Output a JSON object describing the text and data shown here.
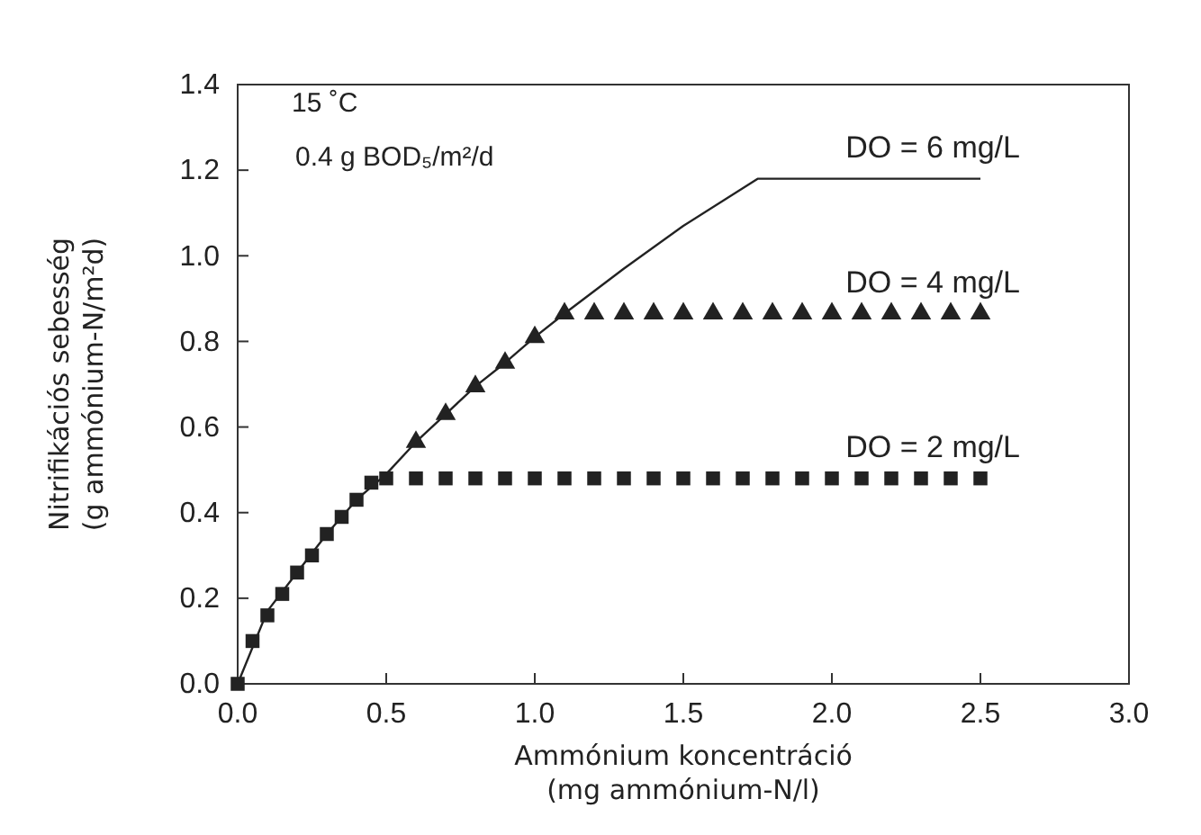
{
  "chart_data": {
    "type": "line",
    "xlabel": "Ammónium koncentráció\n(mg ammónium-N/l)",
    "ylabel": "Nitrifikációs sebesség\n(g ammónium-N/m²d)",
    "xlim": [
      0,
      3
    ],
    "xticks": [
      {
        "value": 0,
        "label": "0.0"
      },
      {
        "value": 0.5,
        "label": "0.5"
      },
      {
        "value": 1,
        "label": "1.0"
      },
      {
        "value": 1.5,
        "label": "1.5"
      },
      {
        "value": 2,
        "label": "2.0"
      },
      {
        "value": 2.5,
        "label": "2.5"
      },
      {
        "value": 3,
        "label": "3.0"
      }
    ],
    "ylim": [
      0,
      1.4
    ],
    "yticks": [
      {
        "value": 0,
        "label": "0.0"
      },
      {
        "value": 0.2,
        "label": "0.2"
      },
      {
        "value": 0.4,
        "label": "0.4"
      },
      {
        "value": 0.6,
        "label": "0.6"
      },
      {
        "value": 0.8,
        "label": "0.8"
      },
      {
        "value": 1,
        "label": "1.0"
      },
      {
        "value": 1.2,
        "label": "1.2"
      },
      {
        "value": 1.4,
        "label": "1.4"
      }
    ],
    "annotations": [
      "15 ˚C",
      "0.4 g BOD₅/m²/d"
    ],
    "series": [
      {
        "name": "DO = 6 mg/L",
        "marker": "none",
        "color": "#222222",
        "x": [
          0,
          0.1,
          0.2,
          0.3,
          0.4,
          0.5,
          0.6,
          0.7,
          0.8,
          0.9,
          1.0,
          1.1,
          1.3,
          1.5,
          1.75,
          2.5
        ],
        "values": [
          0,
          0.17,
          0.26,
          0.35,
          0.43,
          0.49,
          0.565,
          0.63,
          0.695,
          0.75,
          0.81,
          0.865,
          0.97,
          1.07,
          1.18,
          1.18
        ]
      },
      {
        "name": "DO = 4 mg/L",
        "type": "scatter",
        "marker": "triangle",
        "color": "#222222",
        "x": [
          0.6,
          0.7,
          0.8,
          0.9,
          1.0,
          1.1,
          1.2,
          1.3,
          1.4,
          1.5,
          1.6,
          1.7,
          1.8,
          1.9,
          2.0,
          2.1,
          2.2,
          2.3,
          2.4,
          2.5
        ],
        "values": [
          0.565,
          0.63,
          0.695,
          0.75,
          0.81,
          0.865,
          0.865,
          0.865,
          0.865,
          0.865,
          0.865,
          0.865,
          0.865,
          0.865,
          0.865,
          0.865,
          0.865,
          0.865,
          0.865,
          0.865
        ]
      },
      {
        "name": "DO = 2 mg/L",
        "type": "scatter",
        "marker": "square",
        "color": "#222222",
        "x": [
          0,
          0.05,
          0.1,
          0.15,
          0.2,
          0.25,
          0.3,
          0.35,
          0.4,
          0.45,
          0.5,
          0.6,
          0.7,
          0.8,
          0.9,
          1.0,
          1.1,
          1.2,
          1.3,
          1.4,
          1.5,
          1.6,
          1.7,
          1.8,
          1.9,
          2.0,
          2.1,
          2.2,
          2.3,
          2.4,
          2.5
        ],
        "values": [
          0,
          0.1,
          0.16,
          0.21,
          0.26,
          0.3,
          0.35,
          0.39,
          0.43,
          0.47,
          0.48,
          0.48,
          0.48,
          0.48,
          0.48,
          0.48,
          0.48,
          0.48,
          0.48,
          0.48,
          0.48,
          0.48,
          0.48,
          0.48,
          0.48,
          0.48,
          0.48,
          0.48,
          0.48,
          0.48,
          0.48
        ]
      }
    ]
  }
}
